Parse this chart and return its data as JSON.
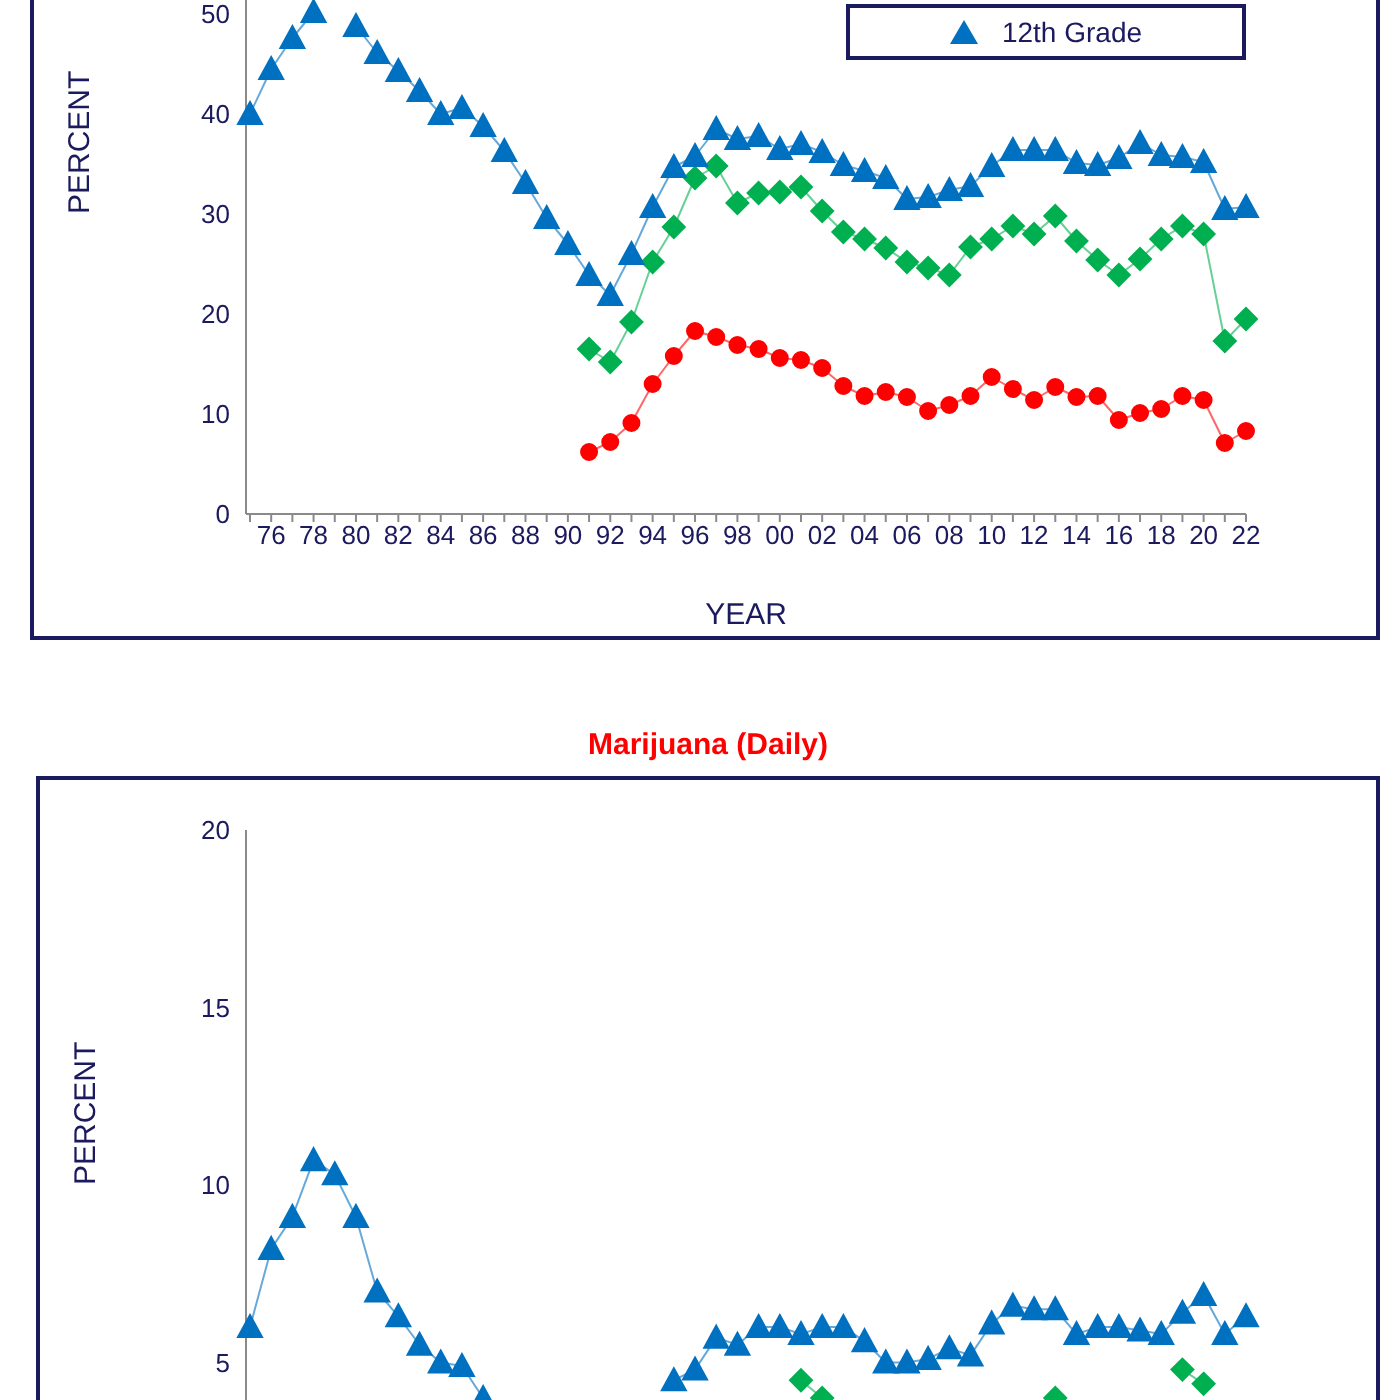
{
  "chart_data": [
    {
      "type": "line",
      "xlabel": "YEAR",
      "ylabel": "PERCENT",
      "categories": [
        null,
        "76",
        null,
        "78",
        null,
        "80",
        null,
        "82",
        null,
        "84",
        null,
        "86",
        null,
        "88",
        null,
        "90",
        null,
        "92",
        null,
        "94",
        null,
        "96",
        null,
        "98",
        null,
        "00",
        null,
        "02",
        null,
        "04",
        null,
        "06",
        null,
        "08",
        null,
        "10",
        null,
        "12",
        null,
        "14",
        null,
        "16",
        null,
        "18",
        null,
        "20",
        null,
        "22"
      ],
      "ylim": [
        0,
        60
      ],
      "yticks": [
        0,
        10,
        20,
        30,
        40,
        50
      ],
      "grid": false,
      "legend": "top right",
      "series": [
        {
          "color": "#ff0000",
          "marker": "circle",
          "values": [
            null,
            null,
            null,
            null,
            null,
            null,
            null,
            null,
            null,
            null,
            null,
            null,
            null,
            null,
            null,
            null,
            6.2,
            7.2,
            9.1,
            13.0,
            15.8,
            18.3,
            17.7,
            16.9,
            16.5,
            15.6,
            15.4,
            14.6,
            12.8,
            11.8,
            12.2,
            11.7,
            10.3,
            10.9,
            11.8,
            13.7,
            12.5,
            11.4,
            12.7,
            11.7,
            11.8,
            9.4,
            10.1,
            10.5,
            11.8,
            11.4,
            7.1,
            8.3
          ]
        },
        {
          "color": "#00b050",
          "marker": "diamond",
          "values": [
            null,
            null,
            null,
            null,
            null,
            null,
            null,
            null,
            null,
            null,
            null,
            null,
            null,
            null,
            null,
            null,
            16.5,
            15.2,
            19.2,
            25.2,
            28.7,
            33.6,
            34.8,
            31.1,
            32.1,
            32.2,
            32.7,
            30.3,
            28.2,
            27.5,
            26.6,
            25.2,
            24.6,
            23.9,
            26.7,
            27.5,
            28.8,
            28.0,
            29.8,
            27.3,
            25.4,
            23.9,
            25.5,
            27.5,
            28.8,
            28.0,
            17.3,
            19.5
          ]
        },
        {
          "name": "12th Grade",
          "color": "#0070c0",
          "marker": "triangle",
          "values": [
            40.0,
            44.5,
            47.6,
            50.2,
            null,
            48.8,
            46.1,
            44.3,
            42.3,
            40.0,
            40.6,
            38.8,
            36.3,
            33.1,
            29.6,
            27.0,
            23.9,
            21.9,
            26.0,
            30.7,
            34.7,
            35.8,
            38.5,
            37.5,
            37.8,
            36.5,
            37.0,
            36.2,
            34.9,
            34.3,
            33.6,
            31.5,
            31.7,
            32.4,
            32.8,
            34.8,
            36.4,
            36.4,
            36.4,
            35.1,
            34.9,
            35.6,
            37.1,
            35.9,
            35.7,
            35.2,
            30.5,
            30.7
          ]
        }
      ]
    },
    {
      "type": "line",
      "title": "Marijuana (Daily)",
      "ylabel": "PERCENT",
      "tick_labels": "y",
      "categories": [
        null,
        "76",
        null,
        "78",
        null,
        "80",
        null,
        "82",
        null,
        "84",
        null,
        "86",
        null,
        "88",
        null,
        "90",
        null,
        "92",
        null,
        "94",
        null,
        "96",
        null,
        "98",
        null,
        "00",
        null,
        "02",
        null,
        "04",
        null,
        "06",
        null,
        "08",
        null,
        "10",
        null,
        "12",
        null,
        "14",
        null,
        "16",
        null,
        "18",
        null,
        "20",
        null,
        "22"
      ],
      "ylim": [
        0,
        20
      ],
      "yticks": [
        5,
        10,
        15,
        20
      ],
      "grid": false,
      "series": [
        {
          "color": "#00b050",
          "marker": "diamond",
          "values": [
            null,
            null,
            null,
            null,
            null,
            null,
            null,
            null,
            null,
            null,
            null,
            null,
            null,
            null,
            null,
            null,
            null,
            null,
            null,
            null,
            null,
            null,
            null,
            null,
            null,
            null,
            4.5,
            4.0,
            null,
            null,
            null,
            null,
            null,
            null,
            null,
            null,
            null,
            null,
            4.0,
            null,
            null,
            null,
            null,
            null,
            4.8,
            4.4,
            null,
            null
          ]
        },
        {
          "color": "#0070c0",
          "marker": "triangle",
          "values": [
            6.0,
            8.2,
            9.1,
            10.7,
            10.3,
            9.1,
            7.0,
            6.3,
            5.5,
            5.0,
            4.9,
            4.0,
            null,
            null,
            null,
            null,
            null,
            null,
            null,
            null,
            4.5,
            4.8,
            5.7,
            5.5,
            6.0,
            6.0,
            5.8,
            6.0,
            6.0,
            5.6,
            5.0,
            5.0,
            5.1,
            5.4,
            5.2,
            6.1,
            6.6,
            6.5,
            6.5,
            5.8,
            6.0,
            6.0,
            5.9,
            5.8,
            6.4,
            6.9,
            5.8,
            6.3
          ]
        }
      ]
    }
  ]
}
